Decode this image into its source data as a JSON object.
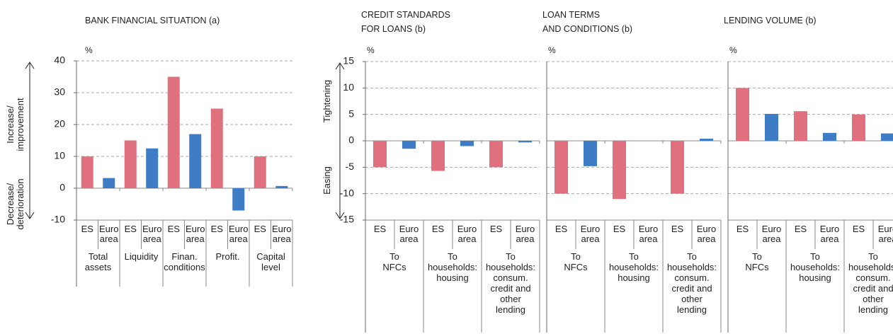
{
  "chart_data": [
    {
      "type": "bar",
      "title": [
        "BANK FINANCIAL SITUATION (a)"
      ],
      "unit": "%",
      "ylim": [
        -10,
        40
      ],
      "yticks": [
        -10,
        0,
        10,
        20,
        30,
        40
      ],
      "show_ytick_labels": true,
      "grid": true,
      "annotations": {
        "up": [
          "Increase/",
          "improvement"
        ],
        "down": [
          "Decrease/",
          "deterioration"
        ]
      },
      "categories": [
        [
          "Total",
          "assets"
        ],
        [
          "Liquidity"
        ],
        [
          "Finan.",
          "conditions"
        ],
        [
          "Profit."
        ],
        [
          "Capital",
          "level"
        ]
      ],
      "series": [
        {
          "name": "ES",
          "color": "#e0707e",
          "values": [
            10,
            15,
            35,
            25,
            10
          ]
        },
        {
          "name": "Euro area",
          "color": "#3e7cc6",
          "values": [
            3.2,
            12.5,
            17,
            -7,
            0.7
          ]
        }
      ]
    },
    {
      "type": "bar",
      "title": [
        "CREDIT STANDARDS",
        "FOR LOANS (b)"
      ],
      "unit": "%",
      "ylim": [
        -15,
        15
      ],
      "yticks": [
        -15,
        -10,
        -5,
        0,
        5,
        10,
        15
      ],
      "show_ytick_labels": true,
      "grid": true,
      "annotations": {
        "up": [
          "Tightening"
        ],
        "down": [
          "Easing"
        ]
      },
      "categories": [
        [
          "To",
          "NFCs"
        ],
        [
          "To",
          "households:",
          "housing"
        ],
        [
          "To",
          "households:",
          "consum.",
          "credit and",
          "other",
          "lending"
        ]
      ],
      "series": [
        {
          "name": "ES",
          "color": "#e0707e",
          "values": [
            -5,
            -5.7,
            -5
          ]
        },
        {
          "name": "Euro area",
          "color": "#3e7cc6",
          "values": [
            -1.5,
            -1,
            -0.3
          ]
        }
      ]
    },
    {
      "type": "bar",
      "title": [
        "LOAN TERMS",
        "AND CONDITIONS (b)"
      ],
      "unit": "%",
      "ylim": [
        -15,
        15
      ],
      "yticks": [
        -15,
        -10,
        -5,
        0,
        5,
        10,
        15
      ],
      "show_ytick_labels": false,
      "grid": true,
      "categories": [
        [
          "To",
          "NFCs"
        ],
        [
          "To",
          "households:",
          "housing"
        ],
        [
          "To",
          "households:",
          "consum.",
          "credit and",
          "other",
          "lending"
        ]
      ],
      "series": [
        {
          "name": "ES",
          "color": "#e0707e",
          "values": [
            -10,
            -11,
            -10
          ]
        },
        {
          "name": "Euro area",
          "color": "#3e7cc6",
          "values": [
            -4.8,
            0,
            0.4
          ]
        }
      ]
    },
    {
      "type": "bar",
      "title": [
        "LENDING VOLUME (b)"
      ],
      "unit": "%",
      "ylim": [
        -15,
        15
      ],
      "yticks": [
        -15,
        -10,
        -5,
        0,
        5,
        10,
        15
      ],
      "show_ytick_labels": false,
      "grid": true,
      "categories": [
        [
          "To",
          "NFCs"
        ],
        [
          "To",
          "households:",
          "housing"
        ],
        [
          "To",
          "households:",
          "consum.",
          "credit and",
          "other",
          "lending"
        ]
      ],
      "series": [
        {
          "name": "ES",
          "color": "#e0707e",
          "values": [
            10,
            5.6,
            5
          ]
        },
        {
          "name": "Euro area",
          "color": "#3e7cc6",
          "values": [
            5.1,
            1.5,
            1.4
          ]
        }
      ]
    }
  ]
}
